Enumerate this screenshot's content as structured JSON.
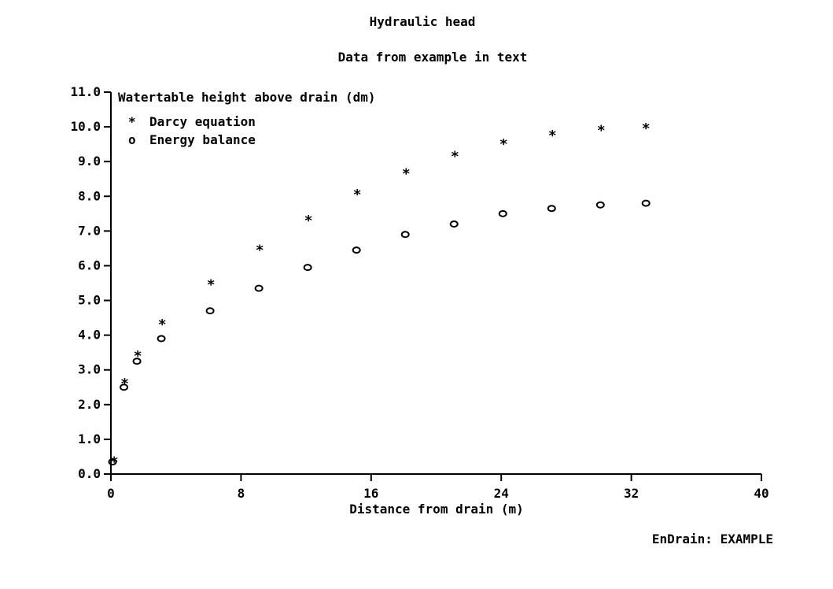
{
  "chart_data": {
    "type": "scatter",
    "title": "Hydraulic head",
    "subtitle": "Data from example in text",
    "xlabel": "Distance from drain (m)",
    "ylabel": "Watertable height above drain (dm)",
    "xlim": [
      0,
      40
    ],
    "ylim": [
      0,
      11
    ],
    "xticks": [
      "0",
      "8",
      "16",
      "24",
      "32",
      "40"
    ],
    "yticks": [
      "0.0",
      "1.0",
      "2.0",
      "3.0",
      "4.0",
      "5.0",
      "6.0",
      "7.0",
      "8.0",
      "9.0",
      "10.0",
      "11.0"
    ],
    "grid": false,
    "legend_position": "top-left",
    "series": [
      {
        "name": "Darcy equation",
        "marker": "*",
        "x": [
          0.2,
          0.85,
          1.65,
          3.15,
          6.15,
          9.15,
          12.15,
          15.15,
          18.15,
          21.15,
          24.15,
          27.15,
          30.15,
          32.9
        ],
        "y": [
          0.4,
          2.65,
          3.45,
          4.35,
          5.5,
          6.5,
          7.35,
          8.1,
          8.7,
          9.2,
          9.55,
          9.8,
          9.95,
          10.0
        ]
      },
      {
        "name": "Energy balance",
        "marker": "o",
        "x": [
          0.1,
          0.8,
          1.6,
          3.1,
          6.1,
          9.1,
          12.1,
          15.1,
          18.1,
          21.1,
          24.1,
          27.1,
          30.1,
          32.9
        ],
        "y": [
          0.35,
          2.5,
          3.25,
          3.9,
          4.7,
          5.35,
          5.95,
          6.45,
          6.9,
          7.2,
          7.5,
          7.65,
          7.75,
          7.8
        ]
      }
    ]
  },
  "footer": "EnDrain: EXAMPLE"
}
